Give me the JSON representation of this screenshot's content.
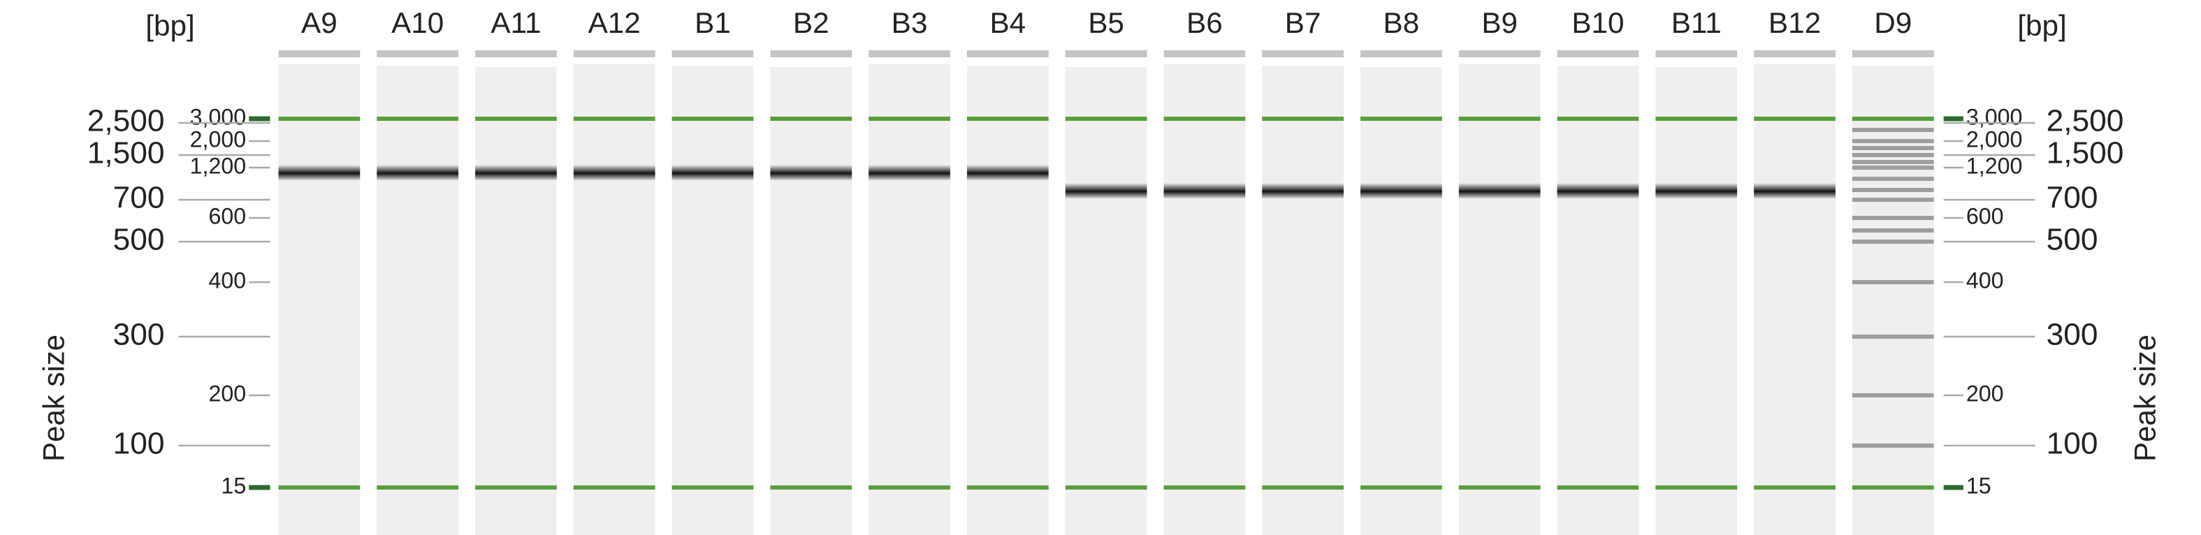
{
  "size_unit": "[bp]",
  "axis_title": "Peak size",
  "lanes": [
    "A9",
    "A10",
    "A11",
    "A12",
    "B1",
    "B2",
    "B3",
    "B4",
    "B5",
    "B6",
    "B7",
    "B8",
    "B9",
    "B10",
    "B11",
    "B12",
    "D9"
  ],
  "ladder": [
    "3,000",
    "2,500",
    "2,000",
    "1,500",
    "1,200",
    "700",
    "600",
    "500",
    "400",
    "300",
    "200",
    "100",
    "15"
  ]
}
